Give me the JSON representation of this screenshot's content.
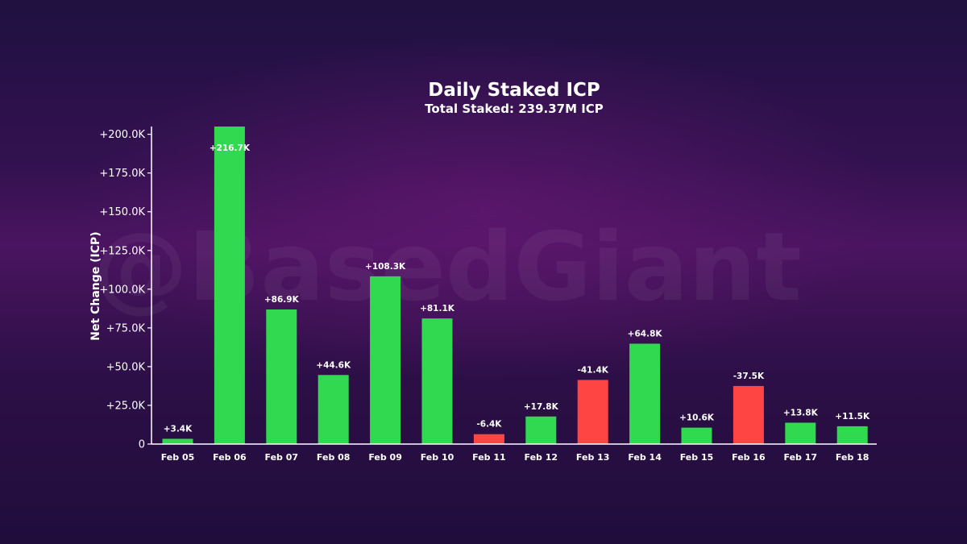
{
  "watermark": "@BasedGiant",
  "chart_data": {
    "type": "bar",
    "title": "Daily Staked ICP",
    "subtitle": "Total Staked: 239.37M ICP",
    "xlabel": "",
    "ylabel": "Net Change (ICP)",
    "ylim": [
      0,
      205000
    ],
    "yticks": [
      0,
      25000,
      50000,
      75000,
      100000,
      125000,
      150000,
      175000,
      200000
    ],
    "ytick_labels": [
      "0",
      "+25.0K",
      "+50.0K",
      "+75.0K",
      "+100.0K",
      "+125.0K",
      "+150.0K",
      "+175.0K",
      "+200.0K"
    ],
    "categories": [
      "Feb 05",
      "Feb 06",
      "Feb 07",
      "Feb 08",
      "Feb 09",
      "Feb 10",
      "Feb 11",
      "Feb 12",
      "Feb 13",
      "Feb 14",
      "Feb 15",
      "Feb 16",
      "Feb 17",
      "Feb 18"
    ],
    "values": [
      3400,
      216700,
      86900,
      44600,
      108300,
      81100,
      -6400,
      17800,
      -41400,
      64800,
      10600,
      -37500,
      13800,
      11500
    ],
    "data_labels": [
      "+3.4K",
      "+216.7K",
      "+86.9K",
      "+44.6K",
      "+108.3K",
      "+81.1K",
      "-6.4K",
      "+17.8K",
      "-41.4K",
      "+64.8K",
      "+10.6K",
      "-37.5K",
      "+13.8K",
      "+11.5K"
    ],
    "bars_show_magnitude": true,
    "grid": false,
    "colors": {
      "positive": "#30d94f",
      "negative": "#ff4444",
      "text": "#ffffff",
      "axis": "#ffffff"
    }
  }
}
